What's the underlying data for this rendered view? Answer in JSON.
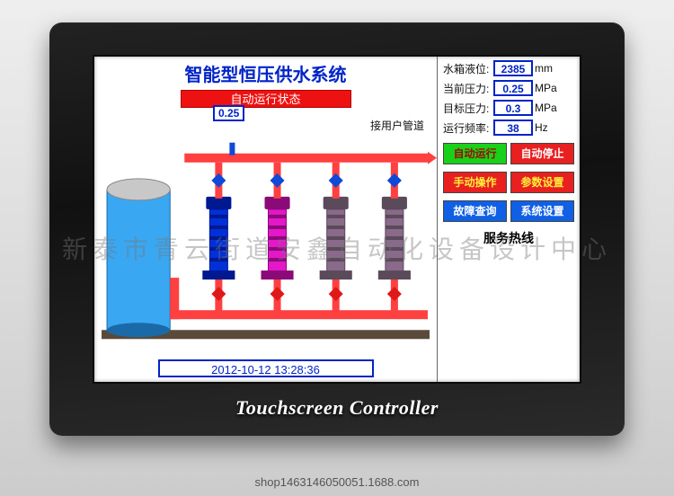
{
  "device": {
    "brand": "Touchscreen Controller"
  },
  "header": {
    "title": "智能型恒压供水系统",
    "status": "自动运行状态",
    "gauge_value": "0.25",
    "pipe_label": "接用户管道"
  },
  "readouts": {
    "tank_level": {
      "label": "水箱液位:",
      "value": "2385",
      "unit": "mm"
    },
    "cur_pressure": {
      "label": "当前压力:",
      "value": "0.25",
      "unit": "MPa"
    },
    "tgt_pressure": {
      "label": "目标压力:",
      "value": "0.3",
      "unit": "MPa"
    },
    "run_freq": {
      "label": "运行频率:",
      "value": "38",
      "unit": "Hz"
    }
  },
  "buttons": {
    "auto_run": "自动运行",
    "auto_stop": "自动停止",
    "manual_op": "手动操作",
    "param_set": "参数设置",
    "fault_q": "故障查询",
    "sys_set": "系统设置"
  },
  "hotline_label": "服务热线",
  "datetime": "2012-10-12 13:28:36",
  "watermark": "新泰市青云街道安鑫自动化设备设计中心",
  "shop_id": "shop1463146050051.1688.com",
  "diagram": {
    "tank_color": "#3aa7f2",
    "tank_top": "#c8c8c8",
    "header_pipe": "#ff4040",
    "bottom_pipe": "#ff4040",
    "valve_blue": "#1048d8",
    "valve_red": "#e01818",
    "pumps": [
      {
        "body": "#0030d8",
        "dark": "#001890"
      },
      {
        "body": "#e418c8",
        "dark": "#8a0a78"
      },
      {
        "body": "#8a6a8a",
        "dark": "#5a4a5a"
      },
      {
        "body": "#8a6a8a",
        "dark": "#5a4a5a"
      }
    ],
    "ground": "#5a4a3a"
  }
}
